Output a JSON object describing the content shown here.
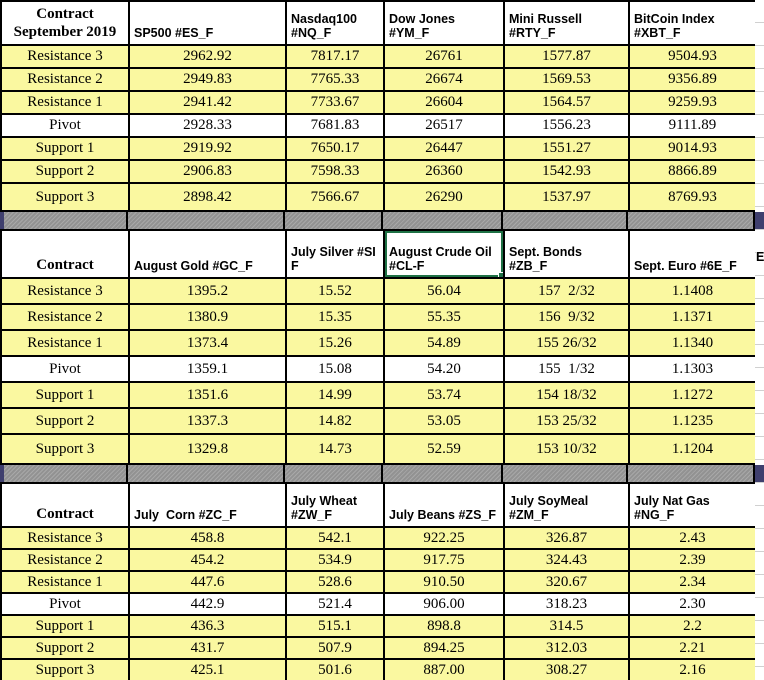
{
  "sheet": {
    "edge_text": "E"
  },
  "colors": {
    "row_shade": "#FAF8A0",
    "separator_gray": "#9A9A9A",
    "separator_edge": "#3F3F6E",
    "selection_green": "#1E7145",
    "grid_black": "#000000",
    "gridline_light": "#D0D0D0"
  },
  "sections": [
    {
      "title": "Contract\nSeptember 2019",
      "columns": [
        {
          "label": "SP500 #ES_F"
        },
        {
          "label": "Nasdaq100\n#NQ_F"
        },
        {
          "label": "Dow Jones\n#YM_F"
        },
        {
          "label": "Mini Russell\n#RTY_F"
        },
        {
          "label": "BitCoin Index\n#XBT_F"
        }
      ],
      "rows": [
        {
          "label": "Resistance 3",
          "shaded": true,
          "values": [
            "2962.92",
            "7817.17",
            "26761",
            "1577.87",
            "9504.93"
          ]
        },
        {
          "label": "Resistance 2",
          "shaded": true,
          "values": [
            "2949.83",
            "7765.33",
            "26674",
            "1569.53",
            "9356.89"
          ]
        },
        {
          "label": "Resistance 1",
          "shaded": true,
          "values": [
            "2941.42",
            "7733.67",
            "26604",
            "1564.57",
            "9259.93"
          ]
        },
        {
          "label": "Pivot",
          "shaded": false,
          "values": [
            "2928.33",
            "7681.83",
            "26517",
            "1556.23",
            "9111.89"
          ]
        },
        {
          "label": "Support 1",
          "shaded": true,
          "values": [
            "2919.92",
            "7650.17",
            "26447",
            "1551.27",
            "9014.93"
          ]
        },
        {
          "label": "Support 2",
          "shaded": true,
          "values": [
            "2906.83",
            "7598.33",
            "26360",
            "1542.93",
            "8866.89"
          ]
        },
        {
          "label": "Support 3",
          "shaded": true,
          "values": [
            "2898.42",
            "7566.67",
            "26290",
            "1537.97",
            "8769.93"
          ]
        }
      ]
    },
    {
      "title": "Contract",
      "columns": [
        {
          "label": "August Gold #GC_F"
        },
        {
          "label": "July Silver #SI\nF"
        },
        {
          "label": "August Crude Oil\n#CL-F",
          "selected": true
        },
        {
          "label": "Sept. Bonds\n#ZB_F"
        },
        {
          "label": "Sept. Euro #6E_F"
        }
      ],
      "rows": [
        {
          "label": "Resistance 3",
          "shaded": true,
          "values": [
            "1395.2",
            "15.52",
            "56.04",
            "157  2/32",
            "1.1408"
          ]
        },
        {
          "label": "Resistance 2",
          "shaded": true,
          "values": [
            "1380.9",
            "15.35",
            "55.35",
            "156  9/32",
            "1.1371"
          ]
        },
        {
          "label": "Resistance 1",
          "shaded": true,
          "values": [
            "1373.4",
            "15.26",
            "54.89",
            "155 26/32",
            "1.1340"
          ]
        },
        {
          "label": "Pivot",
          "shaded": false,
          "values": [
            "1359.1",
            "15.08",
            "54.20",
            "155  1/32",
            "1.1303"
          ]
        },
        {
          "label": "Support 1",
          "shaded": true,
          "values": [
            "1351.6",
            "14.99",
            "53.74",
            "154 18/32",
            "1.1272"
          ]
        },
        {
          "label": "Support 2",
          "shaded": true,
          "values": [
            "1337.3",
            "14.82",
            "53.05",
            "153 25/32",
            "1.1235"
          ]
        },
        {
          "label": "Support 3",
          "shaded": true,
          "values": [
            "1329.8",
            "14.73",
            "52.59",
            "153 10/32",
            "1.1204"
          ]
        }
      ]
    },
    {
      "title": "Contract",
      "columns": [
        {
          "label": "July  Corn #ZC_F"
        },
        {
          "label": "July Wheat\n#ZW_F"
        },
        {
          "label": "July Beans #ZS_F"
        },
        {
          "label": "July SoyMeal\n#ZM_F"
        },
        {
          "label": "July Nat Gas #NG_F"
        }
      ],
      "rows": [
        {
          "label": "Resistance 3",
          "shaded": true,
          "values": [
            "458.8",
            "542.1",
            "922.25",
            "326.87",
            "2.43"
          ]
        },
        {
          "label": "Resistance 2",
          "shaded": true,
          "values": [
            "454.2",
            "534.9",
            "917.75",
            "324.43",
            "2.39"
          ]
        },
        {
          "label": "Resistance 1",
          "shaded": true,
          "values": [
            "447.6",
            "528.6",
            "910.50",
            "320.67",
            "2.34"
          ]
        },
        {
          "label": "Pivot",
          "shaded": false,
          "values": [
            "442.9",
            "521.4",
            "906.00",
            "318.23",
            "2.30"
          ]
        },
        {
          "label": "Support 1",
          "shaded": true,
          "values": [
            "436.3",
            "515.1",
            "898.8",
            "314.5",
            "2.2"
          ]
        },
        {
          "label": "Support 2",
          "shaded": true,
          "values": [
            "431.7",
            "507.9",
            "894.25",
            "312.03",
            "2.21"
          ]
        },
        {
          "label": "Support 3",
          "shaded": true,
          "values": [
            "425.1",
            "501.6",
            "887.00",
            "308.27",
            "2.16"
          ]
        }
      ]
    }
  ]
}
